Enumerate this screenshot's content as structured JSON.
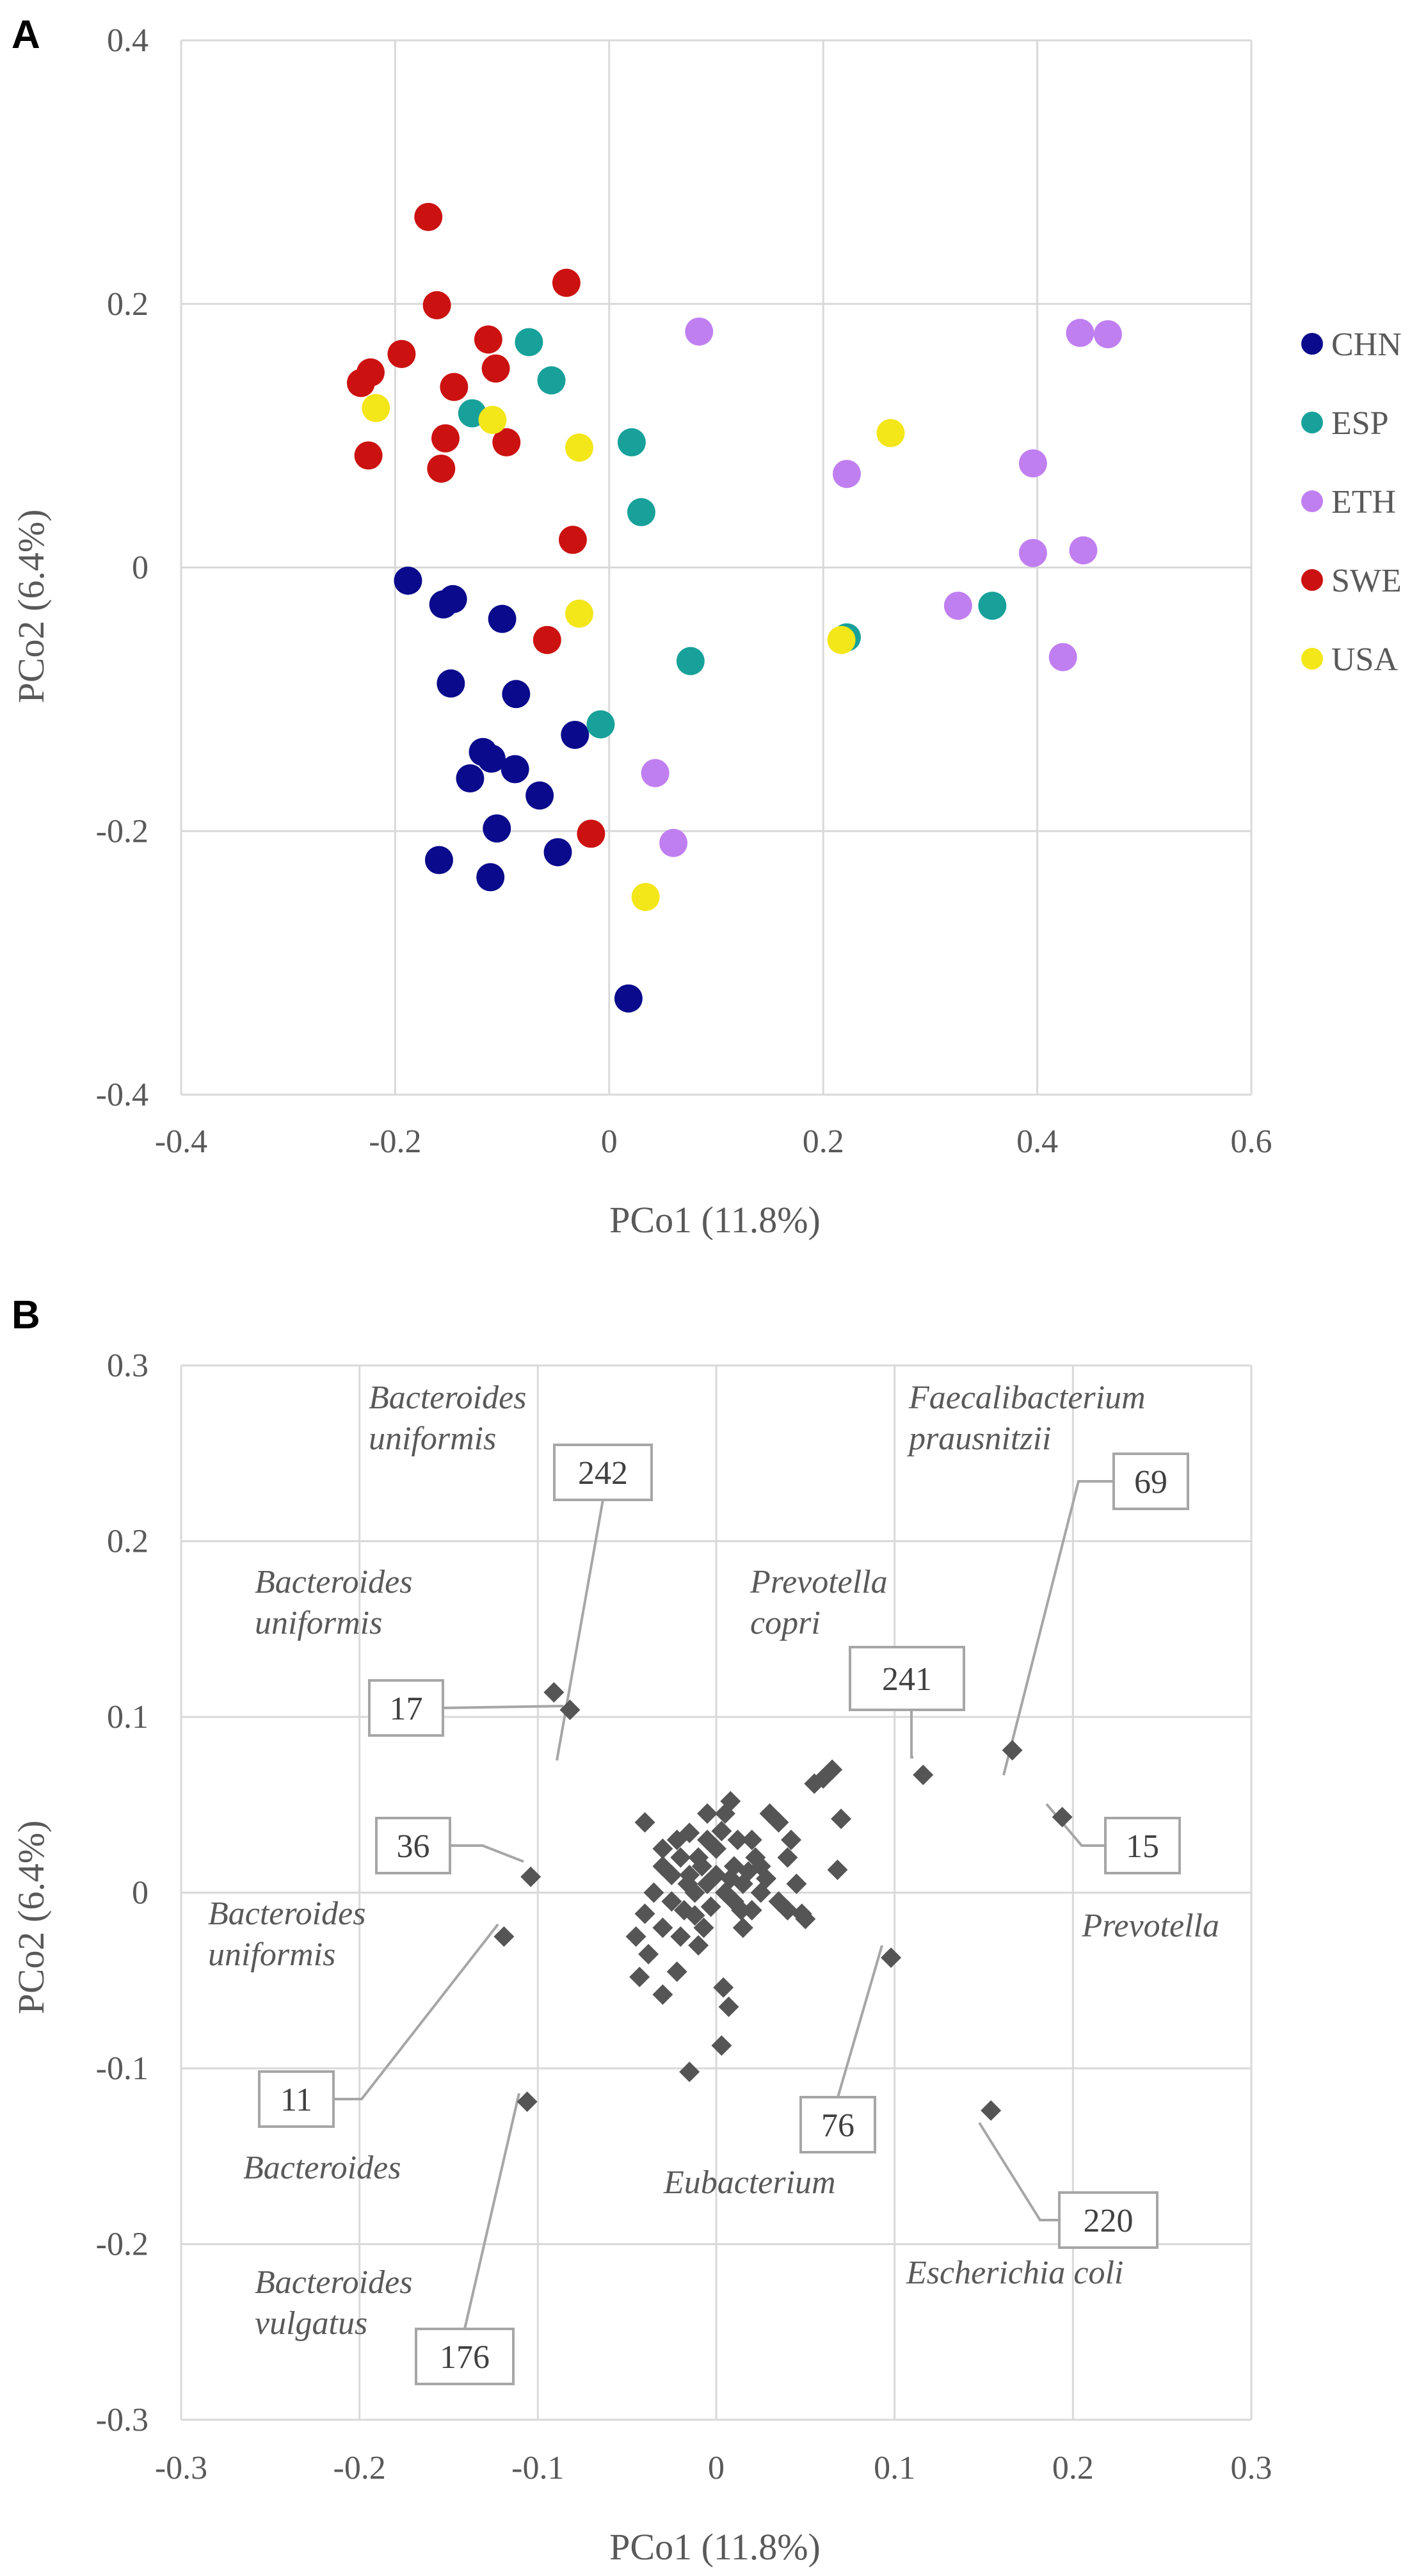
{
  "chart_data": [
    {
      "panel": "A",
      "type": "scatter",
      "xlabel": "PCo1 (11.8%)",
      "ylabel": "PCo2 (6.4%)",
      "xlim": [
        -0.4,
        0.6
      ],
      "ylim": [
        -0.4,
        0.4
      ],
      "xticks": [
        -0.4,
        -0.2,
        0,
        0.2,
        0.4,
        0.6
      ],
      "xtick_labels": [
        "-0.4",
        "-0.2",
        "0",
        "0.2",
        "0.4",
        "0.6"
      ],
      "yticks": [
        -0.4,
        -0.2,
        0,
        0.2,
        0.4
      ],
      "ytick_labels": [
        "-0.4",
        "-0.2",
        "0",
        "0.2",
        "0.4"
      ],
      "grid": true,
      "legend_position": "right",
      "series": [
        {
          "name": "CHN",
          "color": "#0a0a8c",
          "points": [
            [
              -0.188,
              -0.01
            ],
            [
              -0.155,
              -0.028
            ],
            [
              -0.146,
              -0.024
            ],
            [
              -0.1,
              -0.039
            ],
            [
              -0.148,
              -0.088
            ],
            [
              -0.087,
              -0.096
            ],
            [
              -0.032,
              -0.127
            ],
            [
              -0.118,
              -0.14
            ],
            [
              -0.11,
              -0.145
            ],
            [
              -0.13,
              -0.16
            ],
            [
              -0.088,
              -0.153
            ],
            [
              -0.065,
              -0.173
            ],
            [
              -0.105,
              -0.198
            ],
            [
              -0.159,
              -0.222
            ],
            [
              -0.048,
              -0.216
            ],
            [
              -0.111,
              -0.235
            ],
            [
              0.018,
              -0.327
            ]
          ]
        },
        {
          "name": "ESP",
          "color": "#17a19a",
          "points": [
            [
              -0.075,
              0.171
            ],
            [
              -0.054,
              0.142
            ],
            [
              -0.128,
              0.117
            ],
            [
              0.021,
              0.095
            ],
            [
              0.03,
              0.042
            ],
            [
              0.076,
              -0.071
            ],
            [
              -0.008,
              -0.119
            ],
            [
              0.222,
              -0.053
            ],
            [
              0.358,
              -0.029
            ]
          ]
        },
        {
          "name": "ETH",
          "color": "#c07ff0",
          "points": [
            [
              0.084,
              0.179
            ],
            [
              0.44,
              0.178
            ],
            [
              0.466,
              0.177
            ],
            [
              0.222,
              0.071
            ],
            [
              0.396,
              0.079
            ],
            [
              0.396,
              0.011
            ],
            [
              0.443,
              0.013
            ],
            [
              0.326,
              -0.029
            ],
            [
              0.424,
              -0.068
            ],
            [
              0.043,
              -0.156
            ],
            [
              0.06,
              -0.209
            ]
          ]
        },
        {
          "name": "SWE",
          "color": "#cc1111",
          "points": [
            [
              -0.169,
              0.266
            ],
            [
              -0.161,
              0.199
            ],
            [
              -0.04,
              0.216
            ],
            [
              -0.194,
              0.162
            ],
            [
              -0.113,
              0.173
            ],
            [
              -0.223,
              0.148
            ],
            [
              -0.232,
              0.14
            ],
            [
              -0.106,
              0.151
            ],
            [
              -0.145,
              0.137
            ],
            [
              -0.153,
              0.098
            ],
            [
              -0.096,
              0.095
            ],
            [
              -0.225,
              0.085
            ],
            [
              -0.157,
              0.075
            ],
            [
              -0.034,
              0.021
            ],
            [
              -0.058,
              -0.055
            ],
            [
              -0.017,
              -0.202
            ]
          ]
        },
        {
          "name": "USA",
          "color": "#f3e619",
          "points": [
            [
              -0.218,
              0.121
            ],
            [
              -0.109,
              0.112
            ],
            [
              -0.028,
              0.091
            ],
            [
              0.263,
              0.102
            ],
            [
              -0.028,
              -0.035
            ],
            [
              0.217,
              -0.055
            ],
            [
              0.034,
              -0.25
            ]
          ]
        }
      ]
    },
    {
      "panel": "B",
      "type": "scatter",
      "xlabel": "PCo1 (11.8%)",
      "ylabel": "PCo2 (6.4%)",
      "xlim": [
        -0.3,
        0.3
      ],
      "ylim": [
        -0.3,
        0.3
      ],
      "xticks": [
        -0.3,
        -0.2,
        -0.1,
        0,
        0.1,
        0.2,
        0.3
      ],
      "xtick_labels": [
        "-0.3",
        "-0.2",
        "-0.1",
        "0",
        "0.1",
        "0.2",
        "0.3"
      ],
      "yticks": [
        -0.3,
        -0.2,
        -0.1,
        0,
        0.1,
        0.2,
        0.3
      ],
      "ytick_labels": [
        "-0.3",
        "-0.2",
        "-0.1",
        "0",
        "0.1",
        "0.2",
        "0.3"
      ],
      "grid": true,
      "marker": "diamond",
      "marker_color": "#555555",
      "points": [
        [
          -0.091,
          0.114
        ],
        [
          -0.082,
          0.104
        ],
        [
          -0.104,
          0.009
        ],
        [
          -0.119,
          -0.025
        ],
        [
          -0.106,
          -0.119
        ],
        [
          -0.015,
          -0.102
        ],
        [
          0.003,
          -0.087
        ],
        [
          0.007,
          -0.065
        ],
        [
          0.004,
          -0.054
        ],
        [
          -0.043,
          -0.048
        ],
        [
          -0.03,
          -0.058
        ],
        [
          -0.022,
          -0.045
        ],
        [
          -0.038,
          -0.035
        ],
        [
          -0.045,
          -0.025
        ],
        [
          -0.03,
          -0.02
        ],
        [
          -0.04,
          -0.012
        ],
        [
          -0.035,
          0.0
        ],
        [
          -0.025,
          0.01
        ],
        [
          -0.02,
          0.02
        ],
        [
          -0.03,
          0.025
        ],
        [
          -0.022,
          0.03
        ],
        [
          -0.04,
          0.04
        ],
        [
          -0.015,
          0.034
        ],
        [
          -0.005,
          0.03
        ],
        [
          0.005,
          0.045
        ],
        [
          -0.01,
          0.02
        ],
        [
          -0.015,
          0.01
        ],
        [
          -0.012,
          0.0
        ],
        [
          -0.005,
          0.005
        ],
        [
          0.0,
          0.01
        ],
        [
          0.005,
          0.0
        ],
        [
          0.01,
          0.015
        ],
        [
          0.015,
          0.005
        ],
        [
          0.018,
          0.012
        ],
        [
          0.022,
          0.02
        ],
        [
          0.025,
          0.0
        ],
        [
          0.02,
          -0.01
        ],
        [
          0.015,
          -0.02
        ],
        [
          0.035,
          0.04
        ],
        [
          0.04,
          0.02
        ],
        [
          0.042,
          0.03
        ],
        [
          0.045,
          0.005
        ],
        [
          0.04,
          -0.01
        ],
        [
          0.048,
          -0.012
        ],
        [
          0.05,
          -0.015
        ],
        [
          0.055,
          0.062
        ],
        [
          0.06,
          0.065
        ],
        [
          0.065,
          0.07
        ],
        [
          0.07,
          0.042
        ],
        [
          0.068,
          0.013
        ],
        [
          0.03,
          0.045
        ],
        [
          0.008,
          0.052
        ],
        [
          -0.005,
          0.045
        ],
        [
          0.0,
          0.025
        ],
        [
          -0.008,
          0.015
        ],
        [
          -0.018,
          -0.01
        ],
        [
          -0.02,
          -0.025
        ],
        [
          -0.01,
          -0.03
        ],
        [
          -0.025,
          -0.005
        ],
        [
          -0.03,
          0.015
        ],
        [
          -0.003,
          -0.008
        ],
        [
          0.01,
          -0.005
        ],
        [
          0.003,
          0.035
        ],
        [
          0.012,
          0.03
        ],
        [
          -0.016,
          0.005
        ],
        [
          0.02,
          0.03
        ],
        [
          0.025,
          0.015
        ],
        [
          -0.007,
          -0.02
        ],
        [
          -0.012,
          -0.013
        ],
        [
          0.008,
          0.008
        ],
        [
          0.014,
          -0.01
        ],
        [
          0.035,
          -0.005
        ],
        [
          0.028,
          0.008
        ],
        [
          0.098,
          -0.037
        ],
        [
          0.116,
          0.067
        ],
        [
          0.166,
          0.081
        ],
        [
          0.194,
          0.043
        ],
        [
          0.154,
          -0.124
        ]
      ],
      "annotations": [
        {
          "label": "242",
          "species": [
            "Bacteroides",
            "uniformis"
          ],
          "point": [
            -0.091,
            0.114
          ]
        },
        {
          "label": "17",
          "species": [
            "Bacteroides",
            "uniformis"
          ],
          "point": [
            -0.082,
            0.104
          ]
        },
        {
          "label": "36",
          "species": [],
          "point": [
            -0.104,
            0.009
          ]
        },
        {
          "label": "11",
          "species": [
            "Bacteroides",
            "uniformis"
          ],
          "point": [
            -0.119,
            -0.025
          ]
        },
        {
          "label": "176",
          "species": [
            "Bacteroides",
            "vulgatus"
          ],
          "point": [
            -0.106,
            -0.119
          ]
        },
        {
          "label": "",
          "species": [
            "Bacteroides"
          ],
          "point": null
        },
        {
          "label": "241",
          "species": [
            "Prevotella",
            "copri"
          ],
          "point": [
            0.116,
            0.067
          ]
        },
        {
          "label": "69",
          "species": [
            "Faecalibacterium",
            "prausnitzii"
          ],
          "point": [
            0.166,
            0.081
          ]
        },
        {
          "label": "15",
          "species": [
            "Prevotella"
          ],
          "point": [
            0.194,
            0.043
          ]
        },
        {
          "label": "76",
          "species": [
            "Eubacterium"
          ],
          "point": [
            0.098,
            -0.037
          ]
        },
        {
          "label": "220",
          "species": [
            "Escherichia coli"
          ],
          "point": [
            0.154,
            -0.124
          ]
        }
      ]
    }
  ]
}
